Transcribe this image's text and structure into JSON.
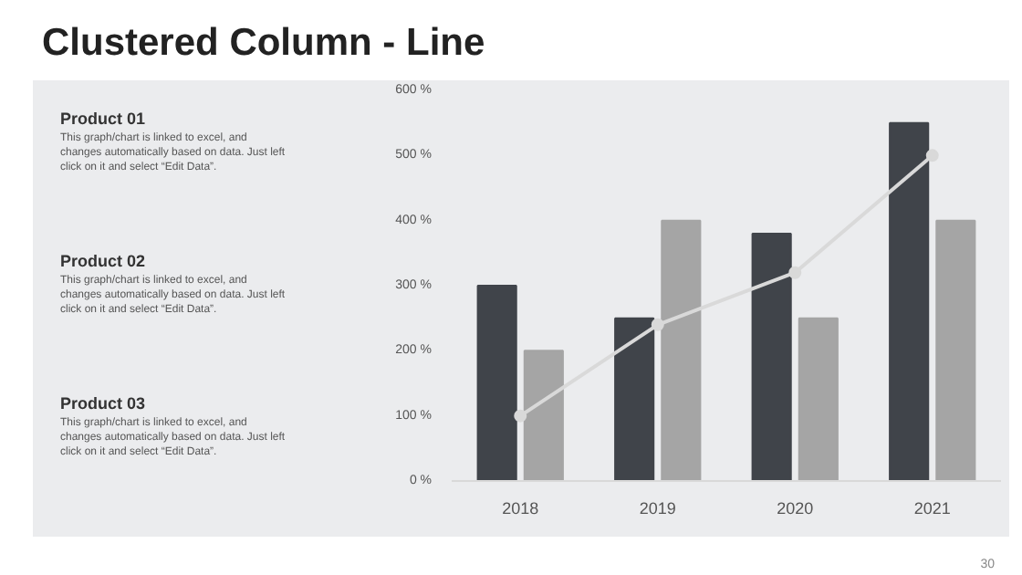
{
  "chart_data": {
    "type": "bar",
    "title": "Clustered Column - Line",
    "categories": [
      "2018",
      "2019",
      "2020",
      "2021"
    ],
    "series": [
      {
        "color": "#40444a",
        "values": [
          300,
          250,
          380,
          550
        ]
      },
      {
        "color": "#a5a5a5",
        "values": [
          200,
          400,
          250,
          400
        ]
      },
      {
        "type": "line",
        "color": "#d9d9d9",
        "marker": "circle",
        "values": [
          100,
          240,
          320,
          500
        ]
      }
    ],
    "ylim": [
      0,
      600
    ],
    "yticks": [
      {
        "value": 0,
        "label": "0 %"
      },
      {
        "value": 100,
        "label": "100 %"
      },
      {
        "value": 200,
        "label": "200 %"
      },
      {
        "value": 300,
        "label": "300 %"
      },
      {
        "value": 400,
        "label": "400 %"
      },
      {
        "value": 500,
        "label": "500 %"
      },
      {
        "value": 600,
        "label": "600 %"
      }
    ],
    "annotations": [
      "Product 01",
      "This graph/chart is linked to excel, and changes automatically based on data. Just left click on it and select “Edit Data”.",
      "Product 02",
      "This graph/chart is linked to excel, and changes automatically based on data. Just left click on it and select “Edit Data”.",
      "Product 03",
      "This graph/chart is linked to excel, and changes automatically based on data. Just left click on it and select “Edit Data”.",
      "30"
    ]
  }
}
